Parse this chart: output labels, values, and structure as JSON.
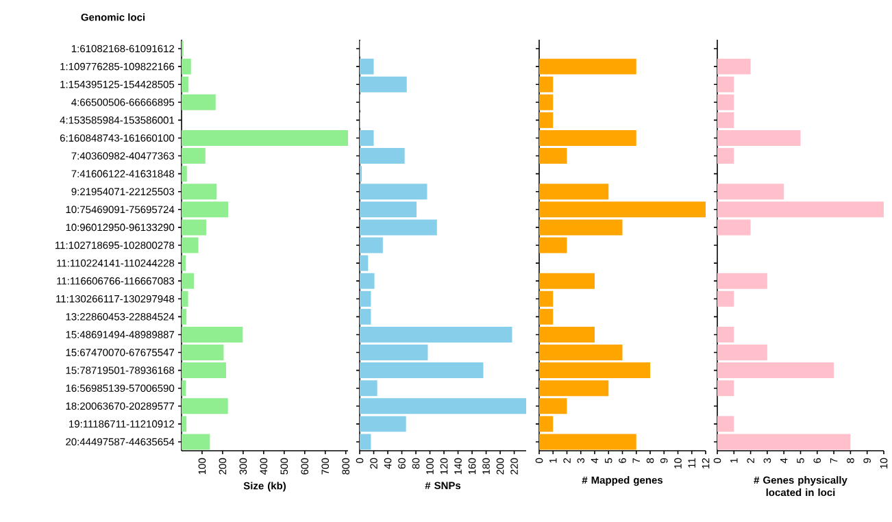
{
  "chart_data": [
    {
      "type": "bar",
      "orientation": "horizontal",
      "ylabel": "Genomic loci",
      "xlabel": "Size (kb)",
      "color": "#90ee90",
      "categories": [
        "1:61082168-61091612",
        "1:109776285-109822166",
        "1:154395125-154428505",
        "4:66500506-66666895",
        "4:153585984-153586001",
        "6:160848743-161660100",
        "7:40360982-40477363",
        "7:41606122-41631848",
        "9:21954071-22125503",
        "10:75469091-75695724",
        "10:96012950-96133290",
        "11:102718695-102800278",
        "11:110224141-110244228",
        "11:116606766-116667083",
        "11:130266117-130297948",
        "13:22860453-22884524",
        "15:48691494-48989887",
        "15:67470070-67675547",
        "15:78719501-78936168",
        "16:56985139-57006590",
        "18:20063670-20289577",
        "19:11186711-11210912",
        "20:44497587-44635654"
      ],
      "values": [
        9,
        46,
        33,
        166,
        0,
        811,
        116,
        26,
        171,
        227,
        120,
        82,
        20,
        60,
        32,
        24,
        298,
        205,
        217,
        21,
        226,
        24,
        138
      ],
      "xlim": [
        0,
        811
      ],
      "xticks": [
        100,
        200,
        300,
        400,
        500,
        600,
        700,
        800
      ]
    },
    {
      "type": "bar",
      "orientation": "horizontal",
      "xlabel": "# SNPs",
      "color": "#87ceeb",
      "tick_labels": "x",
      "categories": [
        null,
        null,
        null,
        null,
        null,
        null,
        null,
        null,
        null,
        null,
        null,
        null,
        null,
        null,
        null,
        null,
        null,
        null,
        null,
        null,
        null,
        null,
        null
      ],
      "values": [
        1,
        20,
        67,
        1,
        1,
        20,
        64,
        3,
        96,
        81,
        110,
        33,
        12,
        21,
        16,
        16,
        217,
        97,
        176,
        25,
        237,
        66,
        16
      ],
      "xlim": [
        0,
        237
      ],
      "xticks": [
        0,
        20,
        40,
        60,
        80,
        100,
        120,
        140,
        160,
        180,
        200,
        220
      ]
    },
    {
      "type": "bar",
      "orientation": "horizontal",
      "xlabel": "# Mapped genes",
      "color": "#ffa500",
      "tick_labels": "x",
      "categories": [
        null,
        null,
        null,
        null,
        null,
        null,
        null,
        null,
        null,
        null,
        null,
        null,
        null,
        null,
        null,
        null,
        null,
        null,
        null,
        null,
        null,
        null,
        null
      ],
      "values": [
        0,
        7,
        1,
        1,
        1,
        7,
        2,
        0,
        5,
        12,
        6,
        2,
        0,
        4,
        1,
        1,
        4,
        6,
        8,
        5,
        2,
        1,
        7
      ],
      "xlim": [
        0,
        12
      ],
      "xticks": [
        0,
        1,
        2,
        3,
        4,
        5,
        6,
        7,
        8,
        9,
        10,
        11,
        12
      ]
    },
    {
      "type": "bar",
      "orientation": "horizontal",
      "xlabel": "# Genes physically located in loci",
      "color": "#ffc0cb",
      "tick_labels": "x",
      "categories": [
        null,
        null,
        null,
        null,
        null,
        null,
        null,
        null,
        null,
        null,
        null,
        null,
        null,
        null,
        null,
        null,
        null,
        null,
        null,
        null,
        null,
        null,
        null
      ],
      "values": [
        0,
        2,
        1,
        1,
        1,
        5,
        1,
        0,
        4,
        10,
        2,
        0,
        0,
        3,
        1,
        0,
        1,
        3,
        7,
        1,
        0,
        1,
        8
      ],
      "xlim": [
        0,
        10
      ],
      "xticks": [
        0,
        1,
        2,
        3,
        4,
        5,
        6,
        7,
        8,
        9,
        10
      ]
    }
  ]
}
